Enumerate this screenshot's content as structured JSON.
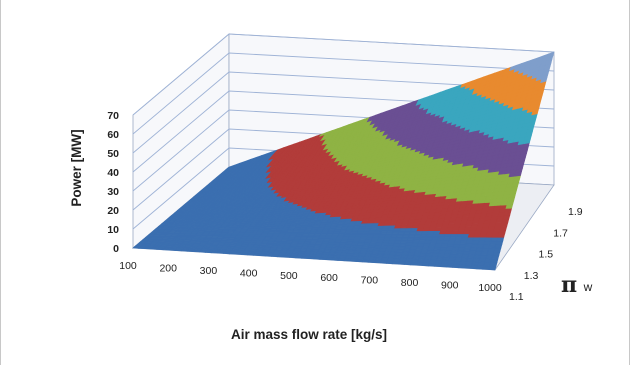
{
  "chart_data": {
    "type": "surface",
    "title": "",
    "zlabel": "Power  [MW]",
    "xlabel": "Air mass flow rate [kg/s]",
    "ylabel_symbol": "π",
    "ylabel_sub": "w",
    "zlim": [
      0,
      70
    ],
    "z_ticks": [
      "0",
      "10",
      "20",
      "30",
      "40",
      "50",
      "60",
      "70"
    ],
    "x_range": [
      100,
      1000
    ],
    "x_ticks": [
      "100",
      "200",
      "300",
      "400",
      "500",
      "600",
      "700",
      "800",
      "900",
      "1000"
    ],
    "y_range": [
      1.1,
      1.9
    ],
    "y_ticks": [
      "1.1",
      "1.3",
      "1.5",
      "1.7",
      "1.9"
    ],
    "grid": true,
    "surface": {
      "corners": [
        {
          "x": 100,
          "pi_w": 1.1,
          "power": 0
        },
        {
          "x": 100,
          "pi_w": 1.9,
          "power": 0
        },
        {
          "x": 1000,
          "pi_w": 1.1,
          "power": 0
        },
        {
          "x": 1000,
          "pi_w": 1.9,
          "power": 70
        }
      ],
      "band_step": 10,
      "band_colors": [
        "#3b6fb0",
        "#b23c3a",
        "#8fb344",
        "#6a4f93",
        "#3aa6bf",
        "#e88a2f",
        "#7f9ecb"
      ]
    }
  }
}
